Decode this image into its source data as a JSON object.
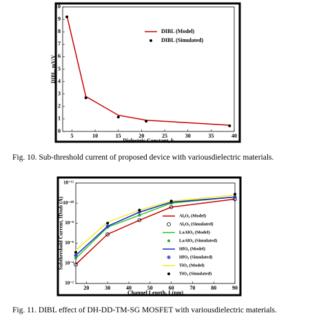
{
  "chart_data": [
    {
      "type": "line",
      "caption": "Fig. 10. Sub-threshold current of proposed device with variousdielectric materials.",
      "xlabel": "Dielectric Constant, k",
      "ylabel": "DIBL, mV/V",
      "x": [
        3.9,
        8,
        15,
        21,
        39
      ],
      "series": [
        {
          "name": "DIBL (Model)",
          "color": "#cc0000",
          "line": true,
          "marker": "none",
          "values": [
            9.3,
            2.8,
            1.3,
            0.9,
            0.5
          ]
        },
        {
          "name": "DIBL (Simulated)",
          "color": "#000000",
          "line": false,
          "marker": "dot",
          "values": [
            9.2,
            2.7,
            1.15,
            0.82,
            0.45
          ]
        }
      ],
      "xlim": [
        3,
        40
      ],
      "xticks": [
        5,
        10,
        15,
        20,
        25,
        30,
        35,
        40
      ],
      "ylim": [
        0,
        10
      ],
      "yticks": [
        0,
        1,
        2,
        3,
        4,
        5,
        6,
        7,
        8,
        9,
        10
      ],
      "legend": "upper right",
      "log": false
    },
    {
      "type": "line",
      "caption": "Fig. 11. DIBL effect of DH-DD-TM-SG MOSFET with variousdielectric materials.",
      "xlabel": "Channel Length, L(nm)",
      "ylabel": "Subthreshold Current, IDsub (A)",
      "x": [
        15,
        30,
        45,
        60,
        90
      ],
      "series": [
        {
          "name": "Al₂O₃ (Model)",
          "color": "#cc0000",
          "line": true,
          "marker": "none",
          "values": [
            0.000126,
            1.26e-07,
            5e-09,
            2.5e-10,
            4e-11
          ]
        },
        {
          "name": "Al₂O₃ (Simulated)",
          "color": "#000000",
          "line": false,
          "marker": "circle",
          "values": [
            0.00013,
            1.3e-07,
            5e-09,
            2.5e-10,
            4e-11
          ]
        },
        {
          "name": "LaAlO₃ (Model)",
          "color": "#22cc22",
          "line": true,
          "marker": "none",
          "values": [
            3.2e-05,
            2.5e-08,
            1.6e-09,
            1e-10,
            2.5e-11
          ]
        },
        {
          "name": "LaAlO₃ (Simulated)",
          "color": "#22aa22",
          "line": false,
          "marker": "dot",
          "values": [
            3e-05,
            2.5e-08,
            1.6e-09,
            1e-10,
            2.5e-11
          ]
        },
        {
          "name": "HfO₂ (Model)",
          "color": "#2222cc",
          "line": true,
          "marker": "none",
          "values": [
            1.6e-05,
            2e-08,
            8e-10,
            8e-11,
            2.5e-11
          ]
        },
        {
          "name": "HfO₂ (Simulated)",
          "color": "#2222cc",
          "line": false,
          "marker": "star",
          "values": [
            1.6e-05,
            2e-08,
            8e-10,
            8e-11,
            2.5e-11
          ]
        },
        {
          "name": "TiO₂ (Model)",
          "color": "#eeee22",
          "line": true,
          "marker": "none",
          "values": [
            5e-06,
            8e-09,
            5e-10,
            6.3e-11,
            1.6e-11
          ]
        },
        {
          "name": "TiO₂ (Simulated)",
          "color": "#000000",
          "line": false,
          "marker": "dot",
          "values": [
            8e-06,
            1e-08,
            5e-10,
            6.3e-11,
            1.3e-11
          ]
        }
      ],
      "xlim": [
        15,
        90
      ],
      "xticks": [
        20,
        30,
        40,
        50,
        60,
        70,
        80,
        90
      ],
      "ylim": [
        0.01,
        1e-12
      ],
      "yticks": [
        {
          "value": 0.01,
          "label": "10⁻²"
        },
        {
          "value": 0.0001,
          "label": "10⁻⁴"
        },
        {
          "value": 1e-06,
          "label": "10⁻⁶"
        },
        {
          "value": 1e-08,
          "label": "10⁻⁸"
        },
        {
          "value": 1e-10,
          "label": "10⁻¹⁰"
        },
        {
          "value": 1e-12,
          "label": "10⁻¹²"
        }
      ],
      "legend": "lower right",
      "log": true
    }
  ]
}
